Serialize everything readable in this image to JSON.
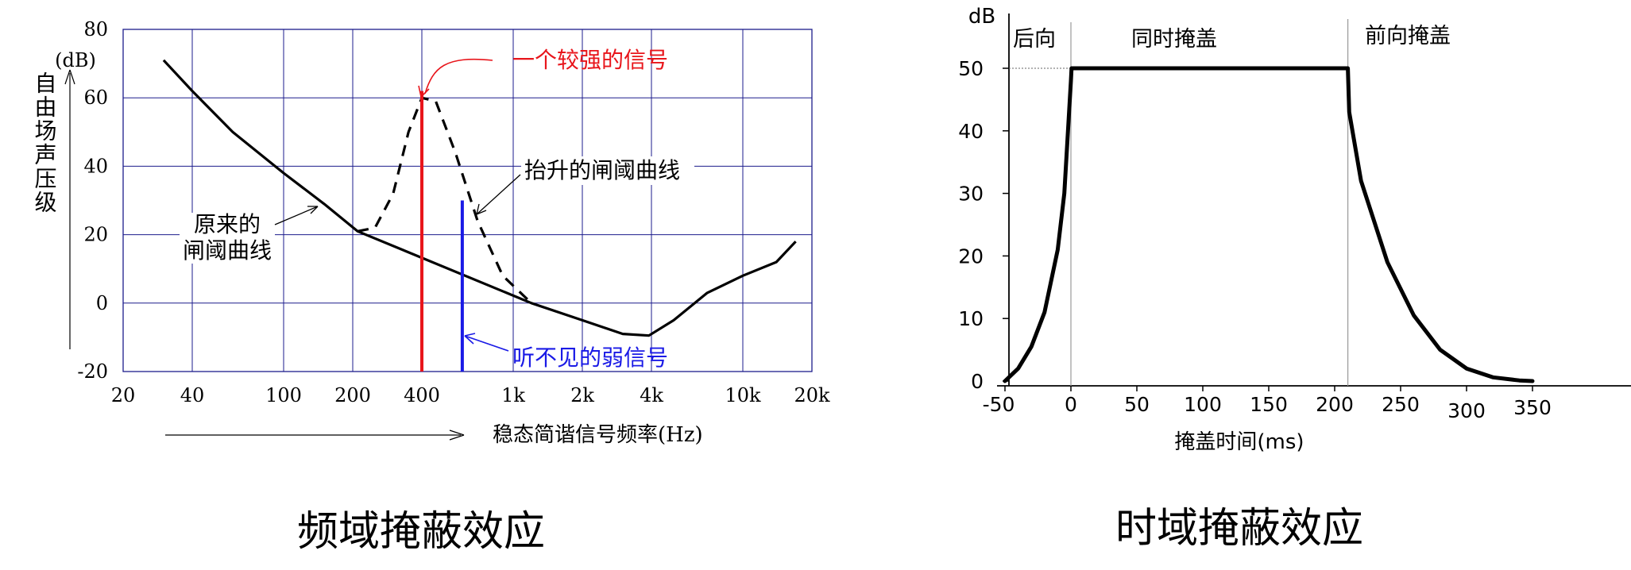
{
  "charts": [
    {
      "chart_data": {
        "type": "line",
        "title": "频域掩蔽效应",
        "ylabel": "自由场声压级",
        "yunit": "(dB)",
        "xlabel": "稳态简谐信号频率(Hz)",
        "x_scale": "log",
        "xlim": [
          20,
          20000
        ],
        "ylim": [
          -20,
          80
        ],
        "x_ticks": [
          20,
          40,
          100,
          200,
          400,
          1000,
          2000,
          4000,
          10000,
          20000
        ],
        "x_tick_labels": [
          "20",
          "40",
          "100",
          "200",
          "400",
          "1k",
          "2k",
          "4k",
          "10k",
          "20k"
        ],
        "y_ticks": [
          -20,
          0,
          20,
          40,
          60,
          80
        ],
        "y_tick_labels": [
          "-20",
          "0",
          "20",
          "40",
          "60",
          "80"
        ],
        "grid": true,
        "series": [
          {
            "name": "原来的闸阈曲线",
            "style": "solid",
            "color": "#000000",
            "x": [
              30,
              40,
              60,
              100,
              150,
              210,
              1200,
              2000,
              3000,
              3900,
              5000,
              7000,
              10000,
              14000,
              17000
            ],
            "y": [
              71,
              62,
              50,
              38,
              29,
              21,
              0,
              -5,
              -9,
              -9.5,
              -5,
              3,
              8,
              12,
              18
            ]
          },
          {
            "name": "抬升的闸阈曲线",
            "style": "dashed",
            "color": "#000000",
            "x": [
              210,
              250,
              300,
              350,
              400,
              460,
              560,
              700,
              900,
              1200
            ],
            "y": [
              21,
              22,
              32,
              50,
              60,
              59,
              44,
              24,
              8,
              0
            ]
          }
        ],
        "signals": [
          {
            "label": "一个较强的信号",
            "color": "#e8151b",
            "x": 400,
            "level": 62
          },
          {
            "label": "听不见的弱信号",
            "color": "#1a1ae6",
            "x": 600,
            "level": 30
          }
        ],
        "annotations": [
          {
            "text_lines": [
              "原来的",
              "闸阈曲线"
            ],
            "points_to": {
              "x": 150,
              "y": 29
            }
          },
          {
            "text": "抬升的闸阈曲线",
            "points_to": {
              "x": 630,
              "y": 25
            }
          }
        ],
        "colors": {
          "grid": "#1c1c8c",
          "curve": "#000000"
        }
      }
    },
    {
      "chart_data": {
        "type": "line",
        "title": "时域掩蔽效应",
        "ylabel": "dB",
        "xlabel": "掩盖时间(ms)",
        "xlim": [
          -50,
          450
        ],
        "ylim": [
          0,
          58
        ],
        "x_ticks": [
          -50,
          0,
          50,
          100,
          150,
          200,
          250,
          300,
          350
        ],
        "x_tick_labels": [
          "-50",
          "0",
          "50",
          "100",
          "150",
          "200",
          "250",
          "300",
          "350"
        ],
        "y_ticks": [
          0,
          10,
          20,
          30,
          40,
          50
        ],
        "y_tick_labels": [
          "0",
          "10",
          "20",
          "30",
          "40",
          "50"
        ],
        "grid": false,
        "regions": [
          {
            "label": "后向",
            "from": -50,
            "to": 0
          },
          {
            "label": "同时掩盖",
            "from": 0,
            "to": 210
          },
          {
            "label": "前向掩盖",
            "from": 210,
            "to": 350
          }
        ],
        "series": [
          {
            "name": "",
            "style": "solid",
            "color": "#000000",
            "x": [
              -50,
              -40,
              -30,
              -20,
              -10,
              -5,
              0,
              0.5,
              210,
              211,
              220,
              240,
              260,
              280,
              300,
              320,
              340,
              350
            ],
            "y": [
              0,
              2,
              5.5,
              11,
              21,
              30,
              48,
              50,
              50,
              43,
              32,
              19,
              10.5,
              5,
              2,
              0.6,
              0.1,
              0
            ]
          }
        ],
        "reference_line": {
          "y": 50,
          "style": "dotted"
        }
      }
    }
  ]
}
